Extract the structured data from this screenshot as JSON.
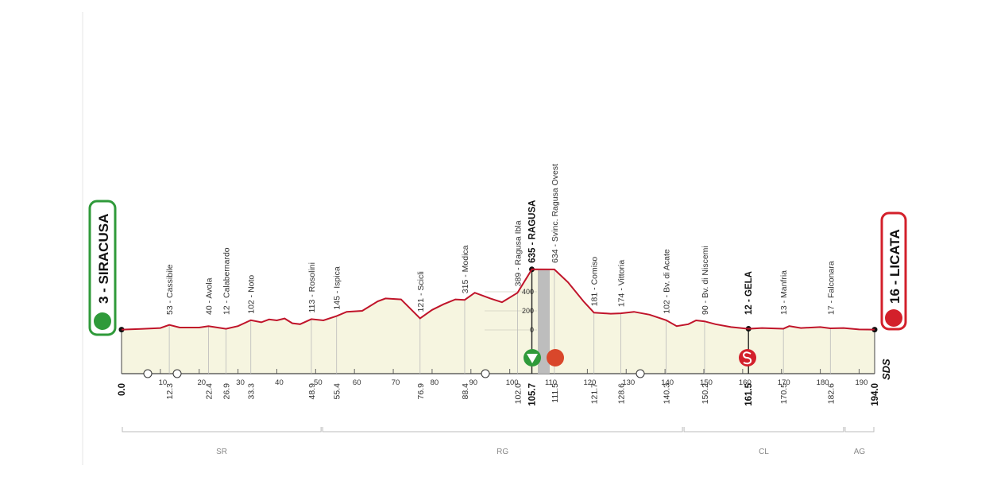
{
  "chart_data": {
    "type": "profile",
    "start": {
      "name": "3 - SIRACUSA",
      "km": {
        "value": 0,
        "label": "0.0"
      }
    },
    "finish": {
      "name": "16 - LICATA",
      "km": {
        "value": 194,
        "label": "194.0"
      }
    },
    "waypoints": [
      {
        "name": "53 - Cassibile",
        "km": 12.3
      },
      {
        "name": "40 - Avola",
        "km": 22.4
      },
      {
        "name": "12 - Calabernardo",
        "km": 26.9
      },
      {
        "name": "102 - Noto",
        "km": 33.3
      },
      {
        "name": "113 - Rosolini",
        "km": 48.9
      },
      {
        "name": "145 - Ispica",
        "km": 55.4
      },
      {
        "name": "121 - Scicli",
        "km": 76.9
      },
      {
        "name": "315 - Modica",
        "km": 88.4
      },
      {
        "name": "389 - Ragusa Ibla",
        "km": {
          "value": 102,
          "label": "102.0"
        }
      },
      {
        "name": "635 - RAGUSA",
        "km": 105.7,
        "bold": true
      },
      {
        "name": "634 - Svinc. Ragusa Ovest",
        "km": 111.5
      },
      {
        "name": "181 - Comiso",
        "km": 121.7
      },
      {
        "name": "174 - Vittoria",
        "km": 128.6
      },
      {
        "name": "102 - Bv. di Acate",
        "km": 140.3
      },
      {
        "name": "90 - Bv. di Niscemi",
        "km": 150.2
      },
      {
        "name": "12 - GELA",
        "km": 161.5,
        "bold": true
      },
      {
        "name": "13 - Manfria",
        "km": 170.5
      },
      {
        "name": "17 - Falconara",
        "km": 182.6
      }
    ],
    "profile": {
      "km": [
        0,
        5,
        10,
        12.3,
        15,
        20,
        22.4,
        26.9,
        30,
        33.3,
        36,
        38,
        40,
        42,
        44,
        46,
        48.9,
        52,
        55.4,
        58,
        62,
        66,
        68,
        72,
        76.9,
        80,
        83,
        86,
        88.4,
        91,
        95,
        98,
        102,
        105.7,
        111.5,
        115,
        119,
        121.7,
        126,
        128.6,
        132,
        136,
        140.3,
        143,
        146,
        148,
        150.2,
        153,
        157,
        161.5,
        165,
        170.5,
        172,
        175,
        180,
        182.6,
        186,
        190,
        194
      ],
      "elevation": [
        3,
        10,
        20,
        53,
        25,
        25,
        40,
        12,
        40,
        102,
        80,
        110,
        100,
        120,
        70,
        60,
        113,
        100,
        145,
        190,
        200,
        300,
        330,
        320,
        121,
        210,
        270,
        320,
        315,
        390,
        330,
        290,
        389,
        635,
        634,
        500,
        300,
        181,
        170,
        174,
        190,
        160,
        102,
        40,
        60,
        100,
        90,
        60,
        30,
        12,
        20,
        13,
        40,
        20,
        30,
        17,
        20,
        5,
        3
      ]
    },
    "xlim": [
      0,
      194
    ],
    "ylim": [
      0,
      1000
    ],
    "xticks": [
      10,
      20,
      30,
      40,
      50,
      60,
      70,
      80,
      90,
      100,
      110,
      120,
      130,
      140,
      150,
      160,
      170,
      180,
      190
    ],
    "yticks": [
      0,
      200,
      400
    ],
    "provinces": [
      {
        "name": "SR",
        "from": 0,
        "to": 51.6
      },
      {
        "name": "RG",
        "from": 51.6,
        "to": 144.7
      },
      {
        "name": "CL",
        "from": 144.7,
        "to": 186.2
      },
      {
        "name": "AG",
        "from": 186.2,
        "to": 194
      }
    ],
    "logo": "SDS",
    "line_color": "#c0142a",
    "fill_color": "#f6f5e0"
  }
}
